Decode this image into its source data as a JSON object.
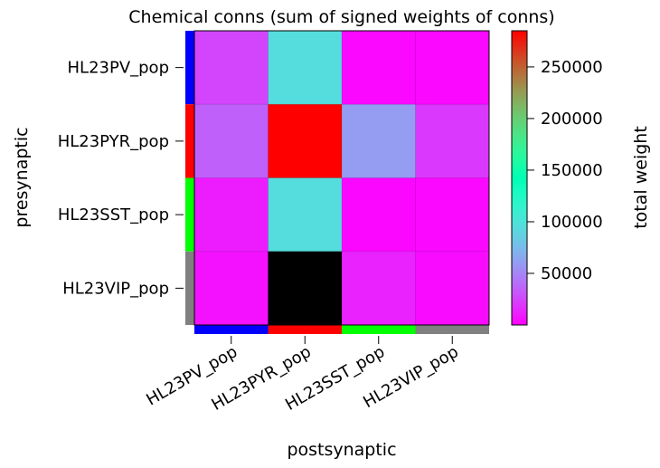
{
  "chart_data": {
    "type": "heatmap",
    "title": "Chemical conns (sum of signed weights of conns)",
    "xlabel": "postsynaptic",
    "ylabel": "presynaptic",
    "rows": [
      "HL23PV_pop",
      "HL23PYR_pop",
      "HL23SST_pop",
      "HL23VIP_pop"
    ],
    "cols": [
      "HL23PV_pop",
      "HL23PYR_pop",
      "HL23SST_pop",
      "HL23VIP_pop"
    ],
    "values": [
      [
        25000,
        95000,
        3000,
        3000
      ],
      [
        35000,
        285000,
        60000,
        20000
      ],
      [
        10000,
        95000,
        2000,
        3000
      ],
      [
        6000,
        null,
        12000,
        4000
      ]
    ],
    "null_color": "#000000",
    "colormap": "rainbow",
    "colorbar": {
      "label": "total weight",
      "min": 0,
      "max": 285000,
      "ticks": [
        50000,
        100000,
        150000,
        200000,
        250000
      ]
    },
    "population_colors": [
      "#0000ff",
      "#ff0000",
      "#00ff00",
      "#808080"
    ]
  }
}
